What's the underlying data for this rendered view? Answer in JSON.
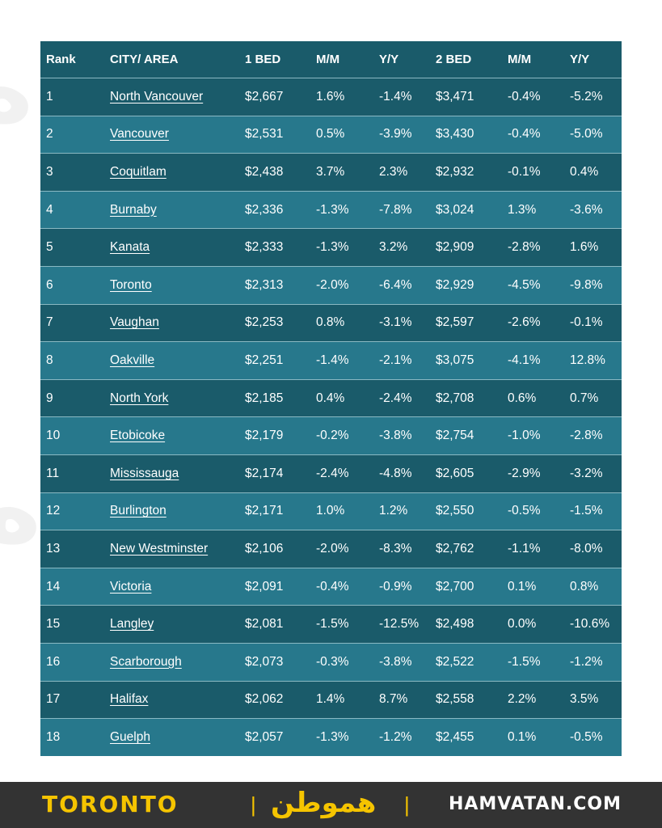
{
  "table": {
    "headers": [
      "Rank",
      "CITY/ AREA",
      "1 BED",
      "M/M",
      "Y/Y",
      "2 BED",
      "M/M",
      "Y/Y"
    ],
    "rows": [
      [
        "1",
        "North Vancouver",
        "$2,667",
        "1.6%",
        "-1.4%",
        "$3,471",
        "-0.4%",
        "-5.2%"
      ],
      [
        "2",
        "Vancouver",
        "$2,531",
        "0.5%",
        "-3.9%",
        "$3,430",
        "-0.4%",
        "-5.0%"
      ],
      [
        "3",
        "Coquitlam",
        "$2,438",
        "3.7%",
        "2.3%",
        "$2,932",
        "-0.1%",
        "0.4%"
      ],
      [
        "4",
        "Burnaby",
        "$2,336",
        "-1.3%",
        "-7.8%",
        "$3,024",
        "1.3%",
        "-3.6%"
      ],
      [
        "5",
        "Kanata",
        "$2,333",
        "-1.3%",
        "3.2%",
        "$2,909",
        "-2.8%",
        "1.6%"
      ],
      [
        "6",
        "Toronto",
        "$2,313",
        "-2.0%",
        "-6.4%",
        "$2,929",
        "-4.5%",
        "-9.8%"
      ],
      [
        "7",
        "Vaughan",
        "$2,253",
        "0.8%",
        "-3.1%",
        "$2,597",
        "-2.6%",
        "-0.1%"
      ],
      [
        "8",
        "Oakville",
        "$2,251",
        "-1.4%",
        "-2.1%",
        "$3,075",
        "-4.1%",
        "12.8%"
      ],
      [
        "9",
        "North York",
        "$2,185",
        "0.4%",
        "-2.4%",
        "$2,708",
        "0.6%",
        "0.7%"
      ],
      [
        "10",
        "Etobicoke",
        "$2,179",
        "-0.2%",
        "-3.8%",
        "$2,754",
        "-1.0%",
        "-2.8%"
      ],
      [
        "11",
        "Mississauga",
        "$2,174",
        "-2.4%",
        "-4.8%",
        "$2,605",
        "-2.9%",
        "-3.2%"
      ],
      [
        "12",
        "Burlington",
        "$2,171",
        "1.0%",
        "1.2%",
        "$2,550",
        "-0.5%",
        "-1.5%"
      ],
      [
        "13",
        "New Westminster",
        "$2,106",
        "-2.0%",
        "-8.3%",
        "$2,762",
        "-1.1%",
        "-8.0%"
      ],
      [
        "14",
        "Victoria",
        "$2,091",
        "-0.4%",
        "-0.9%",
        "$2,700",
        "0.1%",
        "0.8%"
      ],
      [
        "15",
        "Langley",
        "$2,081",
        "-1.5%",
        "-12.5%",
        "$2,498",
        "0.0%",
        "-10.6%"
      ],
      [
        "16",
        "Scarborough",
        "$2,073",
        "-0.3%",
        "-3.8%",
        "$2,522",
        "-1.5%",
        "-1.2%"
      ],
      [
        "17",
        "Halifax",
        "$2,062",
        "1.4%",
        "8.7%",
        "$2,558",
        "2.2%",
        "3.5%"
      ],
      [
        "18",
        "Guelph",
        "$2,057",
        "-1.3%",
        "-1.2%",
        "$2,455",
        "0.1%",
        "-0.5%"
      ]
    ]
  },
  "footer": {
    "city": "TORONTO",
    "separator": "|",
    "logo_text": "هموطن",
    "site": "HAMVATAN.COM"
  },
  "colors": {
    "header_bg": "#1a5b6a",
    "row_dark": "#1a5b6a",
    "row_light": "#27788c",
    "footer_bg": "#333333",
    "accent_yellow": "#f5c400"
  }
}
